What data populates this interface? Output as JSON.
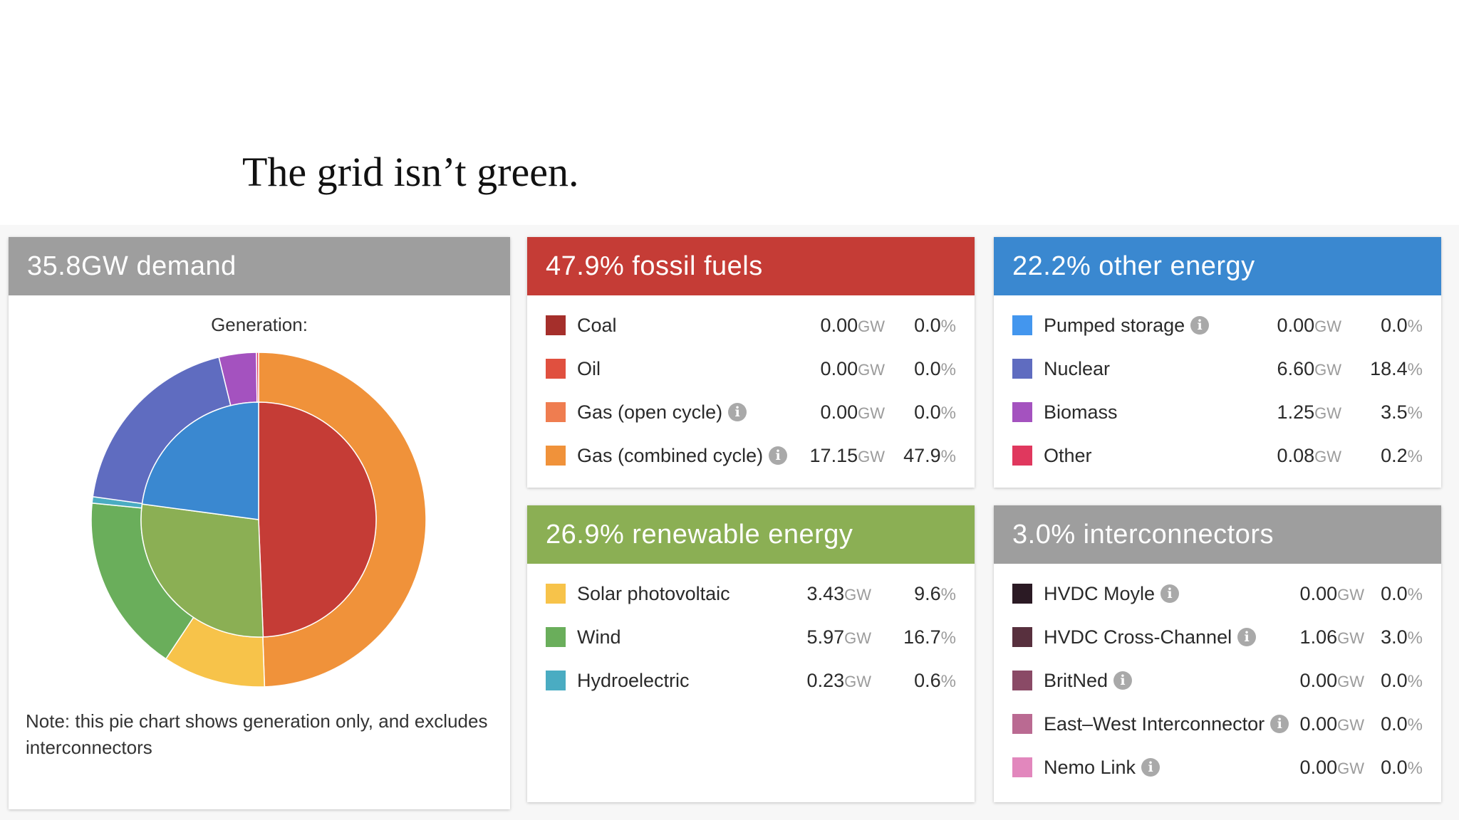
{
  "headline": "The grid isn’t green.",
  "colors": {
    "demand_head": "#9e9e9e",
    "fossil_head": "#c53c36",
    "other_head": "#3a88d0",
    "renewable_head": "#8baf54",
    "interconnect_head": "#9e9e9e"
  },
  "demand": {
    "title": "35.8GW demand",
    "generation_label": "Generation:",
    "note": "Note: this pie chart shows generation only, and excludes interconnectors"
  },
  "chart_data": {
    "type": "pie",
    "title": "",
    "inner_ring": {
      "categories": [
        "Fossil fuels",
        "Renewable energy",
        "Other energy"
      ],
      "values": [
        47.9,
        26.9,
        22.2
      ],
      "colors": [
        "#c53c36",
        "#8baf54",
        "#3a88d0"
      ]
    },
    "outer_ring": {
      "categories": [
        "Coal",
        "Oil",
        "Gas (open cycle)",
        "Gas (combined cycle)",
        "Solar photovoltaic",
        "Wind",
        "Hydroelectric",
        "Pumped storage",
        "Nuclear",
        "Biomass",
        "Other"
      ],
      "values": [
        0.0,
        0.0,
        0.0,
        47.9,
        9.6,
        16.7,
        0.6,
        0.0,
        18.4,
        3.5,
        0.2
      ],
      "colors": [
        "#a52f2b",
        "#e0503f",
        "#ef7d50",
        "#f0923a",
        "#f7c34a",
        "#6aae5b",
        "#4aacc2",
        "#4396ee",
        "#5f6cc0",
        "#a452bf",
        "#e0385e"
      ]
    }
  },
  "fossil": {
    "title": "47.9% fossil fuels",
    "rows": [
      {
        "name": "Coal",
        "gw": "0.00",
        "unit": "GW",
        "pct": "0.0",
        "pct_unit": "%",
        "color": "#a52f2b",
        "info": false
      },
      {
        "name": "Oil",
        "gw": "0.00",
        "unit": "GW",
        "pct": "0.0",
        "pct_unit": "%",
        "color": "#e0503f",
        "info": false
      },
      {
        "name": "Gas (open cycle)",
        "gw": "0.00",
        "unit": "GW",
        "pct": "0.0",
        "pct_unit": "%",
        "color": "#ef7d50",
        "info": true
      },
      {
        "name": "Gas (combined cycle)",
        "gw": "17.15",
        "unit": "GW",
        "pct": "47.9",
        "pct_unit": "%",
        "color": "#f0923a",
        "info": true
      }
    ]
  },
  "other": {
    "title": "22.2% other energy",
    "rows": [
      {
        "name": "Pumped storage",
        "gw": "0.00",
        "unit": "GW",
        "pct": "0.0",
        "pct_unit": "%",
        "color": "#4396ee",
        "info": true
      },
      {
        "name": "Nuclear",
        "gw": "6.60",
        "unit": "GW",
        "pct": "18.4",
        "pct_unit": "%",
        "color": "#5f6cc0",
        "info": false
      },
      {
        "name": "Biomass",
        "gw": "1.25",
        "unit": "GW",
        "pct": "3.5",
        "pct_unit": "%",
        "color": "#a452bf",
        "info": false
      },
      {
        "name": "Other",
        "gw": "0.08",
        "unit": "GW",
        "pct": "0.2",
        "pct_unit": "%",
        "color": "#e0385e",
        "info": false
      }
    ]
  },
  "renewable": {
    "title": "26.9% renewable energy",
    "rows": [
      {
        "name": "Solar photovoltaic",
        "gw": "3.43",
        "unit": "GW",
        "pct": "9.6",
        "pct_unit": "%",
        "color": "#f7c34a",
        "info": false
      },
      {
        "name": "Wind",
        "gw": "5.97",
        "unit": "GW",
        "pct": "16.7",
        "pct_unit": "%",
        "color": "#6aae5b",
        "info": false
      },
      {
        "name": "Hydroelectric",
        "gw": "0.23",
        "unit": "GW",
        "pct": "0.6",
        "pct_unit": "%",
        "color": "#4aacc2",
        "info": false
      }
    ]
  },
  "interconnect": {
    "title": "3.0% interconnectors",
    "rows": [
      {
        "name": "HVDC Moyle",
        "gw": "0.00",
        "unit": "GW",
        "pct": "0.0",
        "pct_unit": "%",
        "color": "#2b1a24",
        "info": true
      },
      {
        "name": "HVDC Cross-Channel",
        "gw": "1.06",
        "unit": "GW",
        "pct": "3.0",
        "pct_unit": "%",
        "color": "#58303e",
        "info": true
      },
      {
        "name": "BritNed",
        "gw": "0.00",
        "unit": "GW",
        "pct": "0.0",
        "pct_unit": "%",
        "color": "#8a4a66",
        "info": true
      },
      {
        "name": "East–West Interconnector",
        "gw": "0.00",
        "unit": "GW",
        "pct": "0.0",
        "pct_unit": "%",
        "color": "#ba6a92",
        "info": true
      },
      {
        "name": "Nemo Link",
        "gw": "0.00",
        "unit": "GW",
        "pct": "0.0",
        "pct_unit": "%",
        "color": "#e287bd",
        "info": true
      }
    ]
  }
}
